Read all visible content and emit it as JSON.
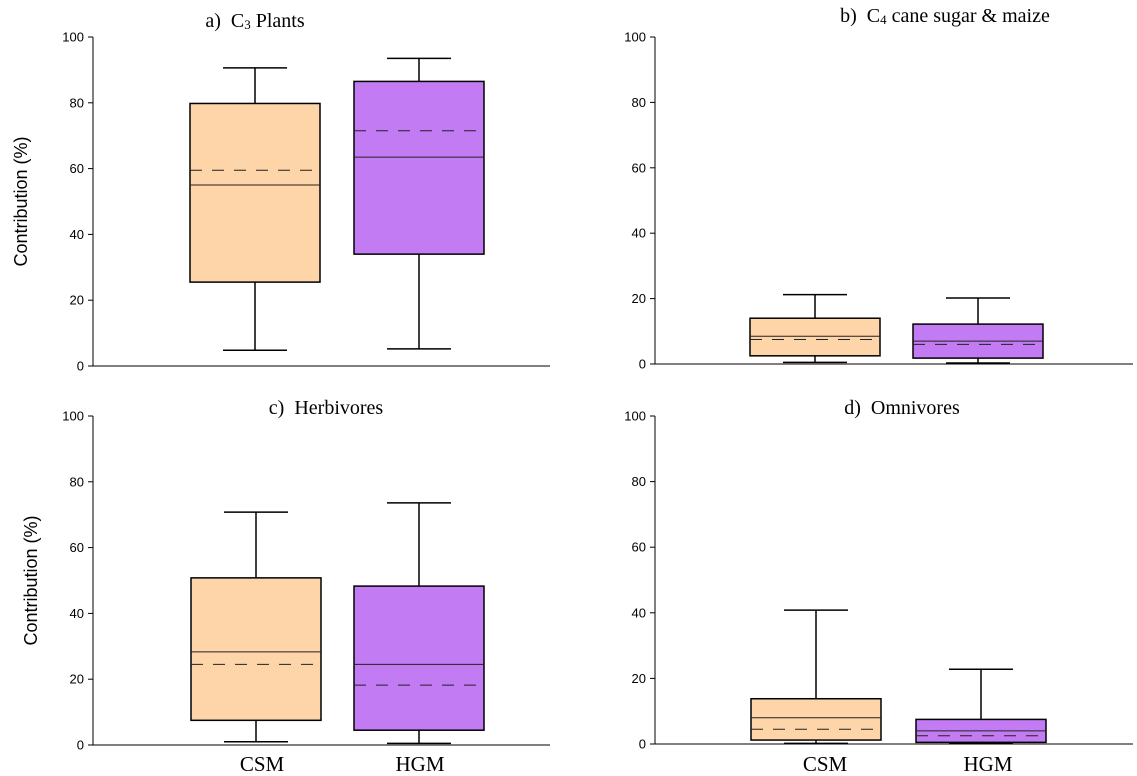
{
  "categories": [
    "CSM",
    "HGM"
  ],
  "colors": {
    "CSM": "#fdd5a8",
    "HGM": "#c27bf2"
  },
  "chart_data": [
    {
      "type": "box",
      "panel": "a",
      "title": {
        "prefix": "a)",
        "main": "C",
        "sub": "3",
        "rest": " Plants"
      },
      "ylabel": "Contribution (%)",
      "ylim": [
        0,
        100
      ],
      "yticks": [
        "0",
        "20",
        "40",
        "60",
        "80",
        "100"
      ],
      "categories": [
        "CSM",
        "HGM"
      ],
      "boxes": [
        {
          "name": "CSM",
          "min": 4.8,
          "q1": 25.5,
          "median": 55.0,
          "mean": 59.5,
          "q3": 79.8,
          "max": 90.6
        },
        {
          "name": "HGM",
          "min": 5.2,
          "q1": 34.0,
          "median": 63.5,
          "mean": 71.5,
          "q3": 86.5,
          "max": 93.5
        }
      ]
    },
    {
      "type": "box",
      "panel": "b",
      "title": {
        "prefix": "b)",
        "main": "C",
        "sub": "4",
        "rest": " cane sugar & maize"
      },
      "ylabel": "",
      "ylim": [
        0,
        100
      ],
      "yticks": [
        "0",
        "20",
        "40",
        "60",
        "80",
        "100"
      ],
      "categories": [
        "CSM",
        "HGM"
      ],
      "boxes": [
        {
          "name": "CSM",
          "min": 0.5,
          "q1": 2.5,
          "median": 8.5,
          "mean": 7.5,
          "q3": 14.0,
          "max": 21.2
        },
        {
          "name": "HGM",
          "min": 0.3,
          "q1": 1.8,
          "median": 7.0,
          "mean": 6.0,
          "q3": 12.2,
          "max": 20.2
        }
      ]
    },
    {
      "type": "box",
      "panel": "c",
      "title": {
        "prefix": "c)",
        "main": "Herbivores",
        "sub": "",
        "rest": ""
      },
      "ylabel": "Contribution (%)",
      "ylim": [
        0,
        100
      ],
      "yticks": [
        "0",
        "20",
        "40",
        "60",
        "80",
        "100"
      ],
      "categories": [
        "CSM",
        "HGM"
      ],
      "boxes": [
        {
          "name": "CSM",
          "min": 1.0,
          "q1": 7.5,
          "median": 28.3,
          "mean": 24.5,
          "q3": 50.8,
          "max": 70.8
        },
        {
          "name": "HGM",
          "min": 0.5,
          "q1": 4.5,
          "median": 24.5,
          "mean": 18.2,
          "q3": 48.3,
          "max": 73.6
        }
      ]
    },
    {
      "type": "box",
      "panel": "d",
      "title": {
        "prefix": "d)",
        "main": "Omnivores",
        "sub": "",
        "rest": ""
      },
      "ylabel": "",
      "ylim": [
        0,
        100
      ],
      "yticks": [
        "0",
        "20",
        "40",
        "60",
        "80",
        "100"
      ],
      "categories": [
        "CSM",
        "HGM"
      ],
      "boxes": [
        {
          "name": "CSM",
          "min": 0.2,
          "q1": 1.2,
          "median": 8.0,
          "mean": 4.5,
          "q3": 13.8,
          "max": 40.8
        },
        {
          "name": "HGM",
          "min": 0.1,
          "q1": 0.5,
          "median": 4.0,
          "mean": 2.5,
          "q3": 7.5,
          "max": 22.8
        }
      ]
    }
  ]
}
